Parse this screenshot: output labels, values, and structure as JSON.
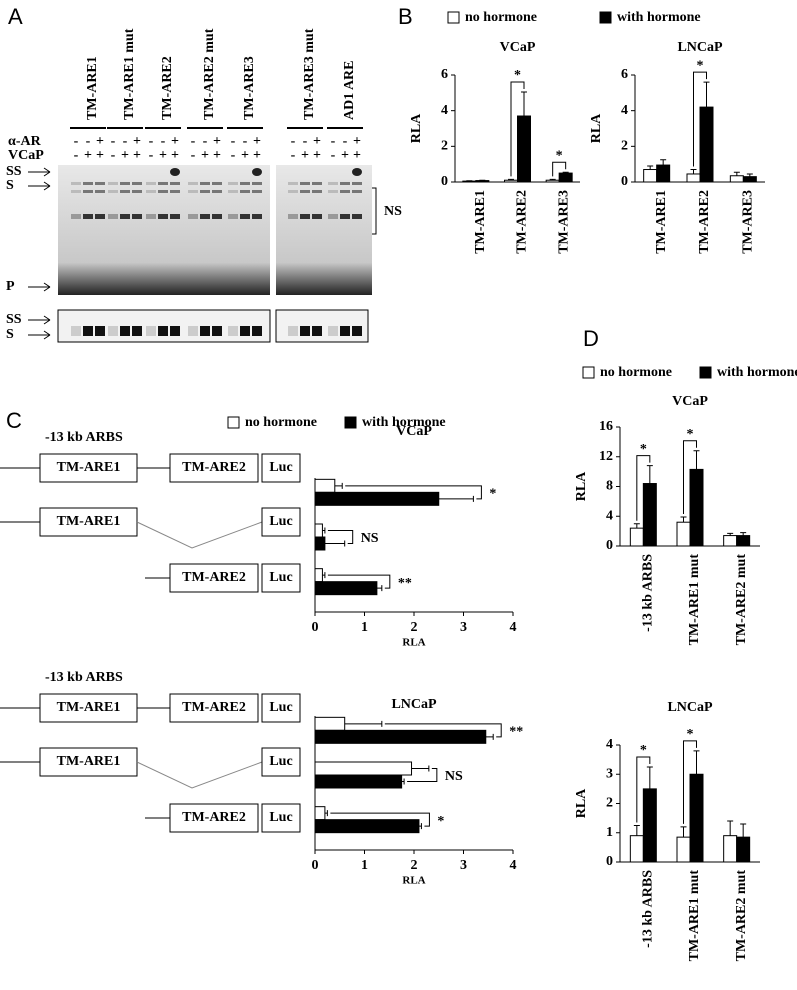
{
  "figure": {
    "letters": [
      "A",
      "B",
      "C",
      "D"
    ],
    "panel_a": {
      "lanes": [
        "TM-ARE1",
        "TM-ARE1 mut",
        "TM-ARE2",
        "TM-ARE2 mut",
        "TM-ARE3",
        "TM-ARE3 mut",
        "AD1 ARE"
      ],
      "rows": [
        "α-AR",
        "VCaP"
      ],
      "alpha_ar": [
        "-",
        "-",
        "+"
      ],
      "vcap": [
        "-",
        "+",
        "+"
      ],
      "arrows": [
        "SS",
        "S",
        "P"
      ],
      "lower_arrows": [
        "SS",
        "S"
      ],
      "bracket": "NS"
    },
    "panel_c": {
      "region": "-13 kb ARBS",
      "constructs": [
        [
          "TM-ARE1",
          "TM-ARE2",
          "Luc"
        ],
        [
          "TM-ARE1",
          "Luc"
        ],
        [
          "TM-ARE2",
          "Luc"
        ]
      ]
    }
  },
  "chart_data": [
    {
      "type": "bar",
      "title": "VCaP",
      "ylabel": "RLA",
      "categories": [
        "TM-ARE1",
        "TM-ARE2",
        "TM-ARE3"
      ],
      "series": [
        {
          "name": "no hormone",
          "color": "#ffffff",
          "values": [
            0.05,
            0.1,
            0.1
          ],
          "errors": [
            0.02,
            0.05,
            0.05
          ]
        },
        {
          "name": "with hormone",
          "color": "#000000",
          "values": [
            0.08,
            3.7,
            0.5
          ],
          "errors": [
            0.02,
            1.35,
            0.05
          ]
        }
      ],
      "significance": [
        null,
        "*",
        "*"
      ],
      "ylim": [
        0,
        6
      ],
      "yticks": [
        0,
        2,
        4,
        6
      ]
    },
    {
      "type": "bar",
      "title": "LNCaP",
      "ylabel": "RLA",
      "categories": [
        "TM-ARE1",
        "TM-ARE2",
        "TM-ARE3"
      ],
      "series": [
        {
          "color": "#ffffff",
          "values": [
            0.7,
            0.45,
            0.35
          ],
          "errors": [
            0.2,
            0.25,
            0.2
          ]
        },
        {
          "color": "#000000",
          "values": [
            0.95,
            4.2,
            0.3
          ],
          "errors": [
            0.3,
            1.4,
            0.15
          ]
        }
      ],
      "significance": [
        null,
        "*",
        null
      ],
      "ylim": [
        0,
        6
      ],
      "yticks": [
        0,
        2,
        4,
        6
      ]
    },
    {
      "type": "hbar",
      "title": "VCaP",
      "xlabel": "RLA",
      "categories": [
        null,
        null,
        null
      ],
      "series": [
        {
          "name": "no hormone",
          "color": "#ffffff",
          "values": [
            0.4,
            0.15,
            0.15
          ],
          "errors": [
            0.15,
            0.05,
            0.05
          ]
        },
        {
          "name": "with hormone",
          "color": "#000000",
          "values": [
            2.5,
            0.2,
            1.25
          ],
          "errors": [
            0.7,
            0.4,
            0.1
          ]
        }
      ],
      "significance": [
        "*",
        "NS",
        "**"
      ],
      "xlim": [
        0,
        4
      ],
      "xticks": [
        0,
        1,
        2,
        3,
        4
      ]
    },
    {
      "type": "hbar",
      "title": "LNCaP",
      "xlabel": "RLA",
      "categories": [
        null,
        null,
        null
      ],
      "series": [
        {
          "color": "#ffffff",
          "values": [
            0.6,
            1.95,
            0.2
          ],
          "errors": [
            0.75,
            0.35,
            0.05
          ]
        },
        {
          "color": "#000000",
          "values": [
            3.45,
            1.75,
            2.1
          ],
          "errors": [
            0.15,
            0.05,
            0.05
          ]
        }
      ],
      "significance": [
        "**",
        "NS",
        "*"
      ],
      "xlim": [
        0,
        4
      ],
      "xticks": [
        0,
        1,
        2,
        3,
        4
      ]
    },
    {
      "type": "bar",
      "title": "VCaP",
      "ylabel": "RLA",
      "categories": [
        "-13 kb ARBS",
        "TM-ARE1 mut",
        "TM-ARE2 mut"
      ],
      "series": [
        {
          "name": "no hormone",
          "color": "#ffffff",
          "values": [
            2.4,
            3.2,
            1.4
          ],
          "errors": [
            0.6,
            0.7,
            0.3
          ]
        },
        {
          "name": "with hormone",
          "color": "#000000",
          "values": [
            8.4,
            10.3,
            1.4
          ],
          "errors": [
            2.4,
            2.5,
            0.4
          ]
        }
      ],
      "significance": [
        "*",
        "*",
        null
      ],
      "ylim": [
        0,
        16
      ],
      "yticks": [
        0,
        4,
        8,
        12,
        16
      ]
    },
    {
      "type": "bar",
      "title": "LNCaP",
      "ylabel": "RLA",
      "categories": [
        "-13 kb ARBS",
        "TM-ARE1 mut",
        "TM-ARE2 mut"
      ],
      "series": [
        {
          "color": "#ffffff",
          "values": [
            0.9,
            0.85,
            0.9
          ],
          "errors": [
            0.35,
            0.35,
            0.5
          ]
        },
        {
          "color": "#000000",
          "values": [
            2.5,
            3.0,
            0.85
          ],
          "errors": [
            0.75,
            0.8,
            0.45
          ]
        }
      ],
      "significance": [
        "*",
        "*",
        null
      ],
      "ylim": [
        0,
        4
      ],
      "yticks": [
        0,
        1,
        2,
        3,
        4
      ]
    }
  ]
}
